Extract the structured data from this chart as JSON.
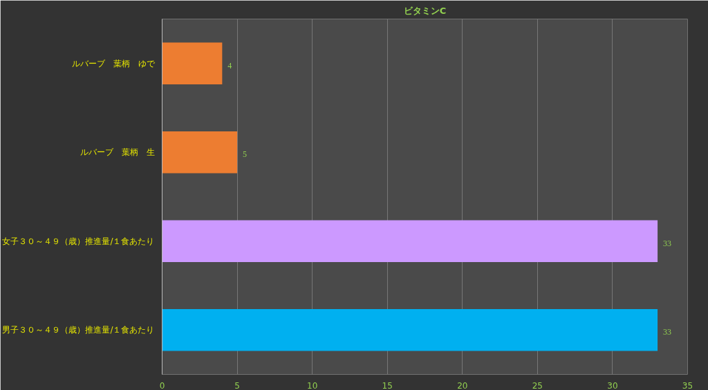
{
  "chart_data": {
    "type": "bar",
    "orientation": "horizontal",
    "title": "ビタミンC",
    "categories": [
      "ルバーブ　葉柄　ゆで",
      "ルバーブ　葉柄　生",
      "女子３０～４９（歳）推進量/１食あたり",
      "男子３０～４９（歳）推進量/１食あたり"
    ],
    "values": [
      4,
      5,
      33,
      33
    ],
    "colors": [
      "#ed7d31",
      "#ed7d31",
      "#cc99ff",
      "#00b0f0"
    ],
    "xlim": [
      0,
      35
    ],
    "xticks": [
      0,
      5,
      10,
      15,
      20,
      25,
      30,
      35
    ],
    "grid": "x",
    "data_labels": true
  }
}
